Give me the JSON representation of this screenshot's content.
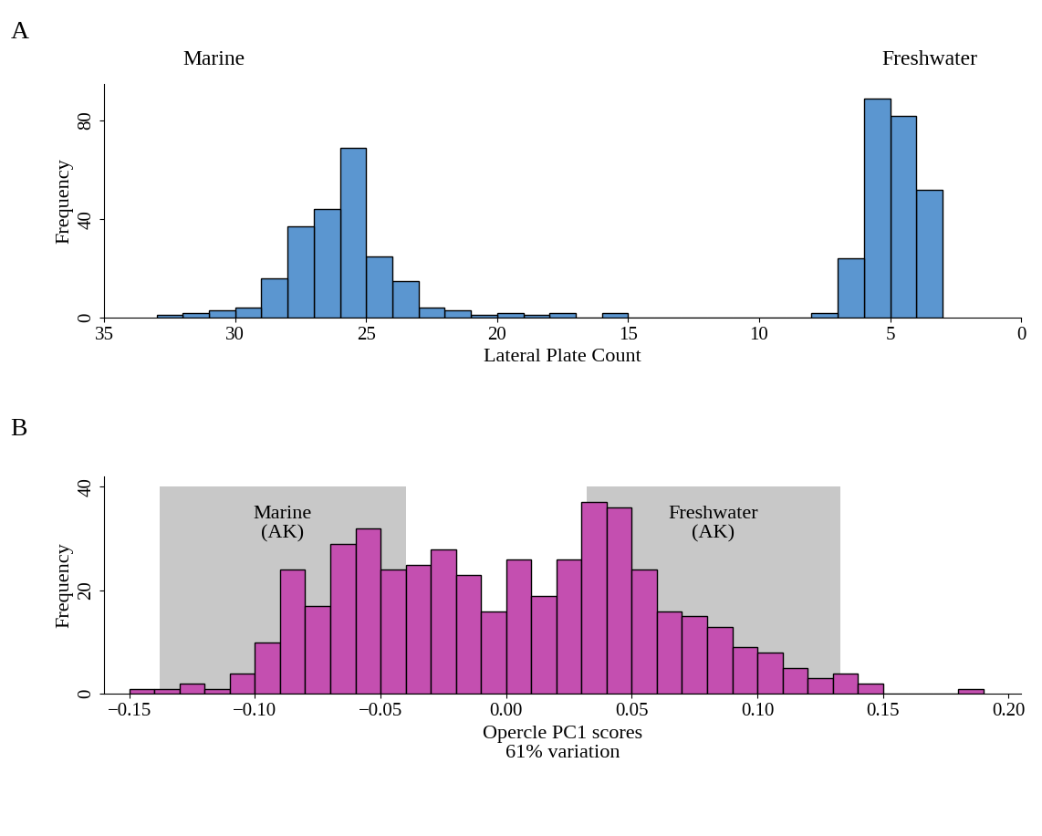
{
  "chart_data": [
    {
      "type": "histogram",
      "panel": "A",
      "annotations": [
        "Marine",
        "Freshwater"
      ],
      "x_label": "Lateral Plate Count",
      "y_label": "Frequency",
      "bins": [
        3,
        4,
        5,
        6,
        7,
        8,
        9,
        10,
        11,
        12,
        13,
        14,
        15,
        16,
        17,
        18,
        19,
        20,
        21,
        22,
        23,
        24,
        25,
        26,
        27,
        28,
        29,
        30,
        31,
        32,
        33
      ],
      "counts": [
        52,
        82,
        89,
        24,
        2,
        0,
        0,
        0,
        0,
        0,
        0,
        0,
        2,
        0,
        2,
        1,
        2,
        1,
        3,
        4,
        15,
        25,
        69,
        44,
        37,
        16,
        4,
        3,
        2,
        1
      ],
      "color": "#5b96d0",
      "xlim": [
        35,
        0
      ],
      "xticks": [
        35,
        30,
        25,
        20,
        15,
        10,
        5,
        0
      ],
      "ylim": [
        0,
        95
      ],
      "yticks": [
        0,
        40,
        80
      ],
      "grid": false
    },
    {
      "type": "histogram",
      "panel": "B",
      "x_label": "Opercle PC1 scores\n61% variation",
      "y_label": "Frequency",
      "bins": [
        -0.15,
        -0.14,
        -0.13,
        -0.12,
        -0.11,
        -0.1,
        -0.09,
        -0.08,
        -0.07,
        -0.06,
        -0.05,
        -0.04,
        -0.03,
        -0.02,
        -0.01,
        0.0,
        0.01,
        0.02,
        0.03,
        0.04,
        0.05,
        0.06,
        0.07,
        0.08,
        0.09,
        0.1,
        0.11,
        0.12,
        0.13,
        0.14,
        0.15,
        0.16,
        0.17,
        0.18,
        0.19
      ],
      "counts": [
        1,
        1,
        2,
        1,
        4,
        10,
        24,
        17,
        29,
        32,
        24,
        25,
        28,
        23,
        16,
        26,
        19,
        26,
        37,
        36,
        24,
        16,
        15,
        13,
        9,
        8,
        5,
        3,
        4,
        2,
        0,
        0,
        0,
        1
      ],
      "color": "#c44fb0",
      "shaded_ranges": [
        {
          "label": "Marine\n(AK)",
          "range": [
            -0.138,
            -0.04
          ],
          "height": 40,
          "color": "#c8c8c8"
        },
        {
          "label": "Freshwater\n(AK)",
          "range": [
            0.032,
            0.133
          ],
          "height": 40,
          "color": "#c8c8c8"
        }
      ],
      "xlim": [
        -0.16,
        0.205
      ],
      "xticks": [
        {
          "value": -0.15,
          "label": "−0.15"
        },
        {
          "value": -0.1,
          "label": "−0.10"
        },
        {
          "value": -0.05,
          "label": "−0.05"
        },
        {
          "value": 0.0,
          "label": "0.00"
        },
        {
          "value": 0.05,
          "label": "0.05"
        },
        {
          "value": 0.1,
          "label": "0.10"
        },
        {
          "value": 0.15,
          "label": "0.15"
        },
        {
          "value": 0.2,
          "label": "0.20"
        }
      ],
      "ylim": [
        0,
        42
      ],
      "yticks": [
        0,
        20,
        40
      ],
      "grid": false
    }
  ]
}
